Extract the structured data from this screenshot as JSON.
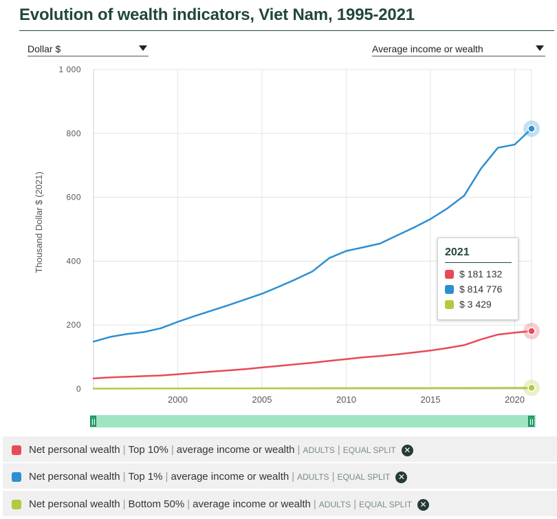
{
  "title": "Evolution of wealth indicators, Viet Nam, 1995-2021",
  "unit_select": {
    "value": "Dollar $"
  },
  "indicator_select": {
    "value": "Average income or wealth"
  },
  "tooltip": {
    "year": "2021",
    "rows": [
      {
        "text": "$ 181 132",
        "color": "#e84a57"
      },
      {
        "text": "$ 814 776",
        "color": "#2b8fd1"
      },
      {
        "text": "$ 3 429",
        "color": "#b5c93e"
      }
    ]
  },
  "legend": [
    {
      "parts": [
        "Net personal wealth",
        "Top 10%",
        "average income or wealth"
      ],
      "tags": [
        "ADULTS",
        "EQUAL SPLIT"
      ],
      "color": "#e84a57"
    },
    {
      "parts": [
        "Net personal wealth",
        "Top 1%",
        "average income or wealth"
      ],
      "tags": [
        "ADULTS",
        "EQUAL SPLIT"
      ],
      "color": "#2b8fd1"
    },
    {
      "parts": [
        "Net personal wealth",
        "Bottom 50%",
        "average income or wealth"
      ],
      "tags": [
        "ADULTS",
        "EQUAL SPLIT"
      ],
      "color": "#b5c93e"
    }
  ],
  "chart_data": {
    "type": "line",
    "title": "Evolution of wealth indicators, Viet Nam, 1995-2021",
    "ylabel": "Thousand Dollar $ (2021)",
    "xlabel": "",
    "xlim": [
      1995,
      2021
    ],
    "ylim": [
      0,
      1000
    ],
    "x_ticks": [
      2000,
      2005,
      2010,
      2015,
      2020
    ],
    "y_ticks": [
      0,
      200,
      400,
      600,
      800,
      1000
    ],
    "y_tick_labels": [
      "0",
      "200",
      "400",
      "600",
      "800",
      "1 000"
    ],
    "grid": true,
    "x": [
      1995,
      1996,
      1997,
      1998,
      1999,
      2000,
      2001,
      2002,
      2003,
      2004,
      2005,
      2006,
      2007,
      2008,
      2009,
      2010,
      2011,
      2012,
      2013,
      2014,
      2015,
      2016,
      2017,
      2018,
      2019,
      2020,
      2021
    ],
    "series": [
      {
        "name": "Net personal wealth | Top 10% | average income or wealth",
        "color": "#e84a57",
        "values": [
          33,
          36,
          38,
          40,
          42,
          46,
          50,
          54,
          58,
          62,
          67,
          72,
          77,
          82,
          88,
          93,
          99,
          103,
          108,
          114,
          120,
          128,
          137,
          155,
          170,
          176,
          181.132
        ]
      },
      {
        "name": "Net personal wealth | Top 1%",
        "color": "#2b8fd1",
        "values": [
          148,
          163,
          172,
          178,
          190,
          210,
          228,
          245,
          262,
          280,
          298,
          320,
          343,
          368,
          410,
          432,
          443,
          455,
          480,
          505,
          532,
          565,
          605,
          690,
          755,
          765,
          814.776
        ]
      },
      {
        "name": "Net personal wealth | Bottom 50%",
        "color": "#b5c93e",
        "values": [
          0.9,
          1.0,
          1.1,
          1.2,
          1.3,
          1.4,
          1.5,
          1.6,
          1.7,
          1.8,
          1.9,
          2.0,
          2.1,
          2.2,
          2.3,
          2.4,
          2.5,
          2.6,
          2.7,
          2.8,
          2.9,
          3.0,
          3.1,
          3.2,
          3.3,
          3.35,
          3.429
        ]
      }
    ]
  }
}
